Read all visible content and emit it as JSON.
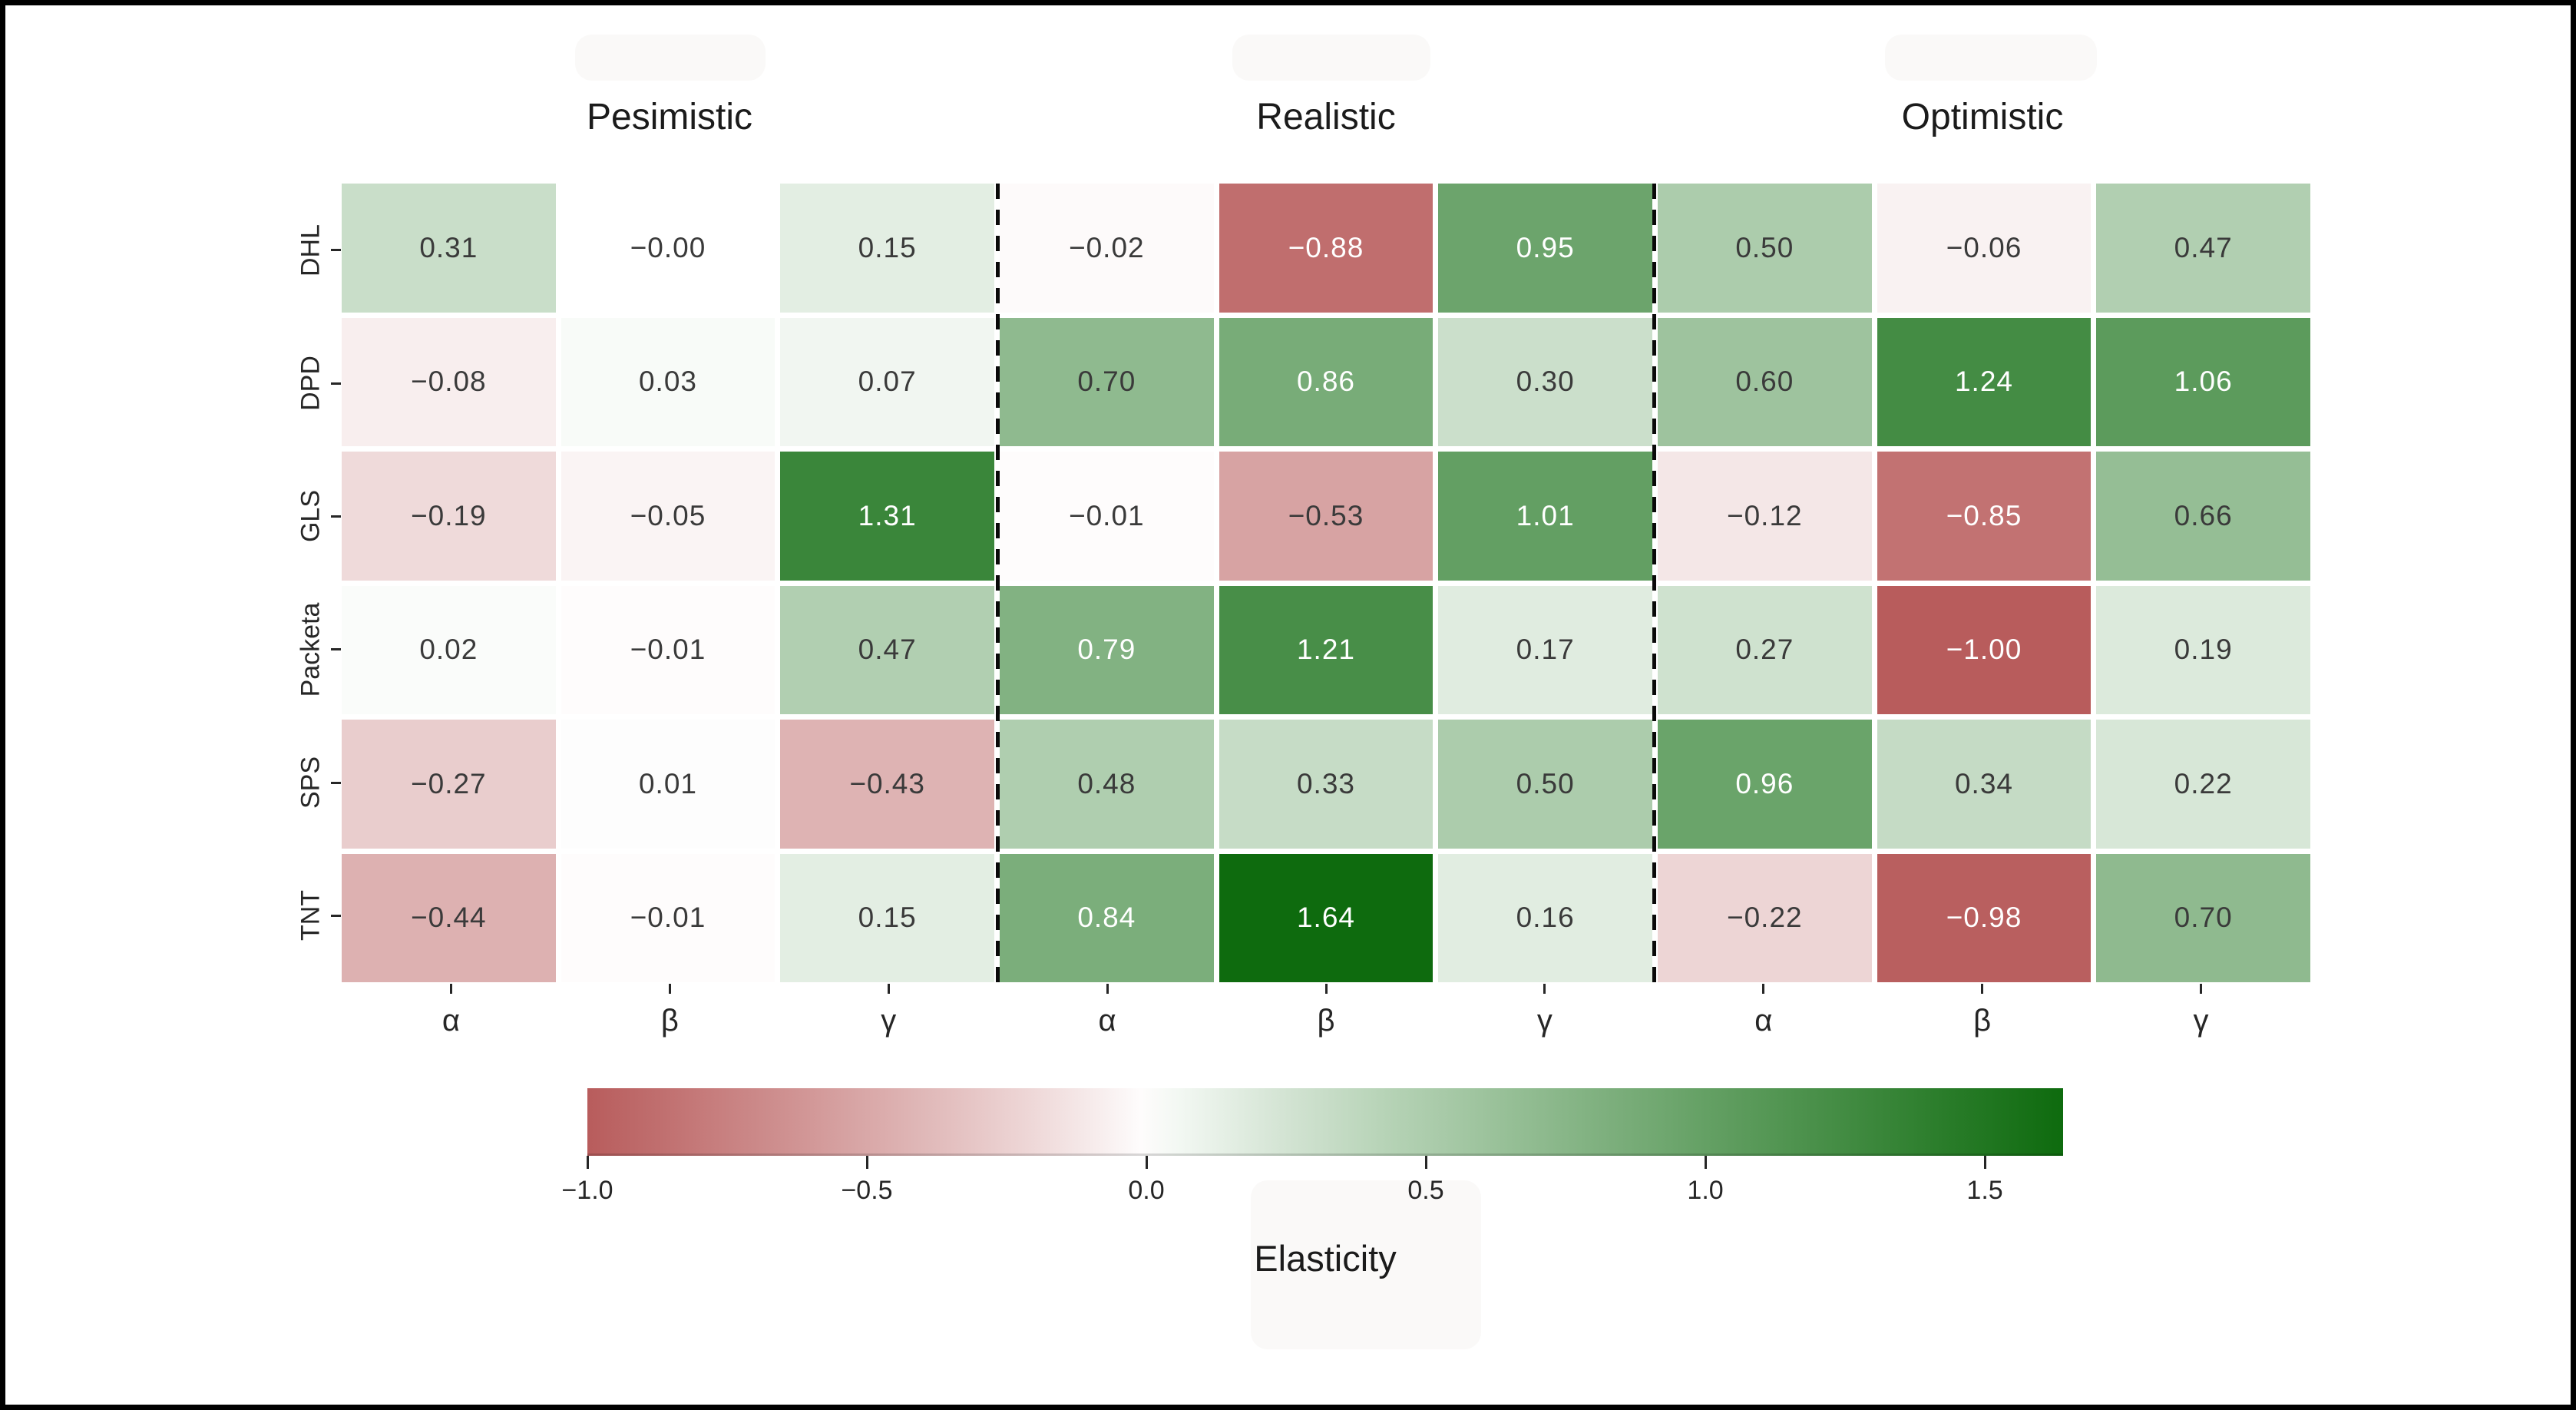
{
  "chart_data": {
    "type": "heatmap",
    "rows": [
      "DHL",
      "DPD",
      "GLS",
      "Packeta",
      "SPS",
      "TNT"
    ],
    "col_groups": [
      {
        "title": "Pesimistic",
        "columns": [
          "α",
          "β",
          "γ"
        ]
      },
      {
        "title": "Realistic",
        "columns": [
          "α",
          "β",
          "γ"
        ]
      },
      {
        "title": "Optimistic",
        "columns": [
          "α",
          "β",
          "γ"
        ]
      }
    ],
    "values": [
      [
        0.31,
        -0.0,
        0.15,
        -0.02,
        -0.88,
        0.95,
        0.5,
        -0.06,
        0.47
      ],
      [
        -0.08,
        0.03,
        0.07,
        0.7,
        0.86,
        0.3,
        0.6,
        1.24,
        1.06
      ],
      [
        -0.19,
        -0.05,
        1.31,
        -0.01,
        -0.53,
        1.01,
        -0.12,
        -0.85,
        0.66
      ],
      [
        0.02,
        -0.01,
        0.47,
        0.79,
        1.21,
        0.17,
        0.27,
        -1.0,
        0.19
      ],
      [
        -0.27,
        0.01,
        -0.43,
        0.48,
        0.33,
        0.5,
        0.96,
        0.34,
        0.22
      ],
      [
        -0.44,
        -0.01,
        0.15,
        0.84,
        1.64,
        0.16,
        -0.22,
        -0.98,
        0.7
      ]
    ],
    "labels": [
      [
        "0.31",
        "−0.00",
        "0.15",
        "−0.02",
        "−0.88",
        "0.95",
        "0.50",
        "−0.06",
        "0.47"
      ],
      [
        "−0.08",
        "0.03",
        "0.07",
        "0.70",
        "0.86",
        "0.30",
        "0.60",
        "1.24",
        "1.06"
      ],
      [
        "−0.19",
        "−0.05",
        "1.31",
        "−0.01",
        "−0.53",
        "1.01",
        "−0.12",
        "−0.85",
        "0.66"
      ],
      [
        "0.02",
        "−0.01",
        "0.47",
        "0.79",
        "1.21",
        "0.17",
        "0.27",
        "−1.00",
        "0.19"
      ],
      [
        "−0.27",
        "0.01",
        "−0.43",
        "0.48",
        "0.33",
        "0.50",
        "0.96",
        "0.34",
        "0.22"
      ],
      [
        "−0.44",
        "−0.01",
        "0.15",
        "0.84",
        "1.64",
        "0.16",
        "−0.22",
        "−0.98",
        "0.70"
      ]
    ],
    "colorbar": {
      "label": "Elasticity",
      "ticks": [
        -1.0,
        -0.5,
        0.0,
        0.5,
        1.0,
        1.5
      ],
      "tick_labels": [
        "−1.0",
        "−0.5",
        "0.0",
        "0.5",
        "1.0",
        "1.5"
      ],
      "vmin": -1.0,
      "vmax": 1.64
    },
    "colors": {
      "negative_end": "#b85c5c",
      "center": "#ffffff",
      "positive_end": "#0e6b0e",
      "text_dark": "#3a3a3a",
      "text_light": "#ffffff"
    },
    "white_text_threshold": 0.75,
    "layout_hints": {
      "grid": "6 rows × 9 cols, dashed separators between 3-column scenario groups",
      "legend_position": "horizontal colorbar bottom center"
    }
  }
}
